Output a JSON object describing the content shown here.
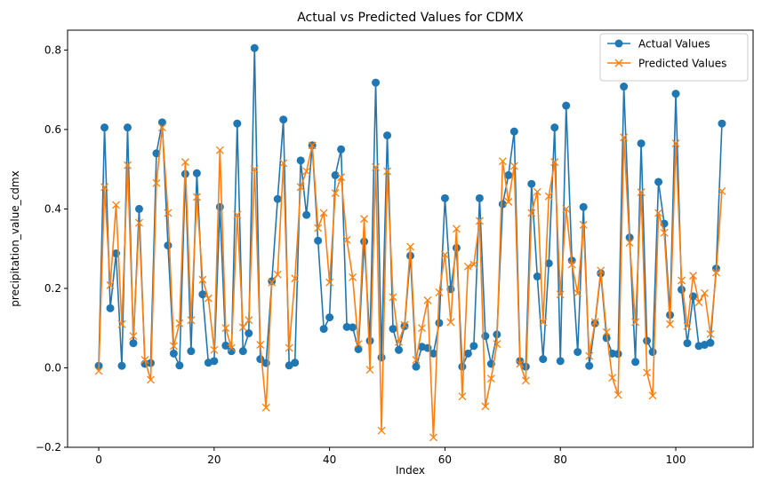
{
  "chart_data": {
    "type": "line",
    "title": "Actual vs Predicted Values for CDMX",
    "xlabel": "Index",
    "ylabel": "precipitation_value_cdmx",
    "xlim": [
      -5.4,
      113.4
    ],
    "ylim": [
      -0.2,
      0.85
    ],
    "xticks": [
      0,
      20,
      40,
      60,
      80,
      100
    ],
    "yticks": [
      -0.2,
      0.0,
      0.2,
      0.4,
      0.6,
      0.8
    ],
    "ytick_labels": [
      "−0.2",
      "0.0",
      "0.2",
      "0.4",
      "0.6",
      "0.8"
    ],
    "grid": false,
    "legend_position": "top-right",
    "series": [
      {
        "name": "Actual Values",
        "color": "#1f77b4",
        "marker": "circle",
        "values": [
          0.005,
          0.605,
          0.15,
          0.288,
          0.005,
          0.605,
          0.062,
          0.4,
          0.01,
          0.012,
          0.54,
          0.618,
          0.308,
          0.036,
          0.006,
          0.488,
          0.042,
          0.49,
          0.185,
          0.013,
          0.017,
          0.405,
          0.056,
          0.042,
          0.615,
          0.042,
          0.087,
          0.805,
          0.022,
          0.012,
          0.218,
          0.425,
          0.625,
          0.006,
          0.013,
          0.522,
          0.385,
          0.56,
          0.32,
          0.098,
          0.127,
          0.485,
          0.55,
          0.103,
          0.102,
          0.047,
          0.318,
          0.068,
          0.718,
          0.026,
          0.585,
          0.098,
          0.045,
          0.105,
          0.282,
          0.003,
          0.053,
          0.05,
          0.036,
          0.113,
          0.427,
          0.198,
          0.302,
          0.003,
          0.036,
          0.055,
          0.427,
          0.08,
          0.01,
          0.084,
          0.412,
          0.485,
          0.595,
          0.017,
          0.003,
          0.463,
          0.23,
          0.022,
          0.263,
          0.605,
          0.017,
          0.66,
          0.27,
          0.04,
          0.405,
          0.005,
          0.112,
          0.238,
          0.075,
          0.036,
          0.035,
          0.708,
          0.328,
          0.015,
          0.565,
          0.068,
          0.04,
          0.468,
          0.363,
          0.133,
          0.69,
          0.197,
          0.062,
          0.18,
          0.055,
          0.058,
          0.063,
          0.25,
          0.615
        ]
      },
      {
        "name": "Predicted Values",
        "color": "#ff7f0e",
        "marker": "x",
        "values": [
          -0.008,
          0.455,
          0.208,
          0.41,
          0.11,
          0.51,
          0.08,
          0.365,
          0.02,
          -0.03,
          0.465,
          0.605,
          0.39,
          0.055,
          0.112,
          0.518,
          0.12,
          0.43,
          0.222,
          0.175,
          0.045,
          0.548,
          0.1,
          0.05,
          0.385,
          0.102,
          0.12,
          0.5,
          0.058,
          -0.1,
          0.215,
          0.235,
          0.515,
          0.05,
          0.225,
          0.455,
          0.495,
          0.56,
          0.352,
          0.39,
          0.215,
          0.44,
          0.48,
          0.322,
          0.228,
          0.06,
          0.375,
          -0.005,
          0.505,
          -0.158,
          0.495,
          0.178,
          0.065,
          0.108,
          0.305,
          0.02,
          0.1,
          0.17,
          -0.175,
          0.19,
          0.285,
          0.115,
          0.35,
          -0.072,
          0.255,
          0.26,
          0.37,
          -0.097,
          -0.027,
          0.06,
          0.52,
          0.418,
          0.508,
          0.01,
          -0.032,
          0.39,
          0.443,
          0.115,
          0.432,
          0.518,
          0.185,
          0.4,
          0.26,
          0.188,
          0.36,
          0.03,
          0.115,
          0.245,
          0.09,
          -0.025,
          -0.068,
          0.58,
          0.315,
          0.115,
          0.442,
          -0.012,
          -0.07,
          0.39,
          0.34,
          0.11,
          0.565,
          0.22,
          0.105,
          0.232,
          0.165,
          0.188,
          0.085,
          0.24,
          0.445
        ]
      }
    ]
  }
}
